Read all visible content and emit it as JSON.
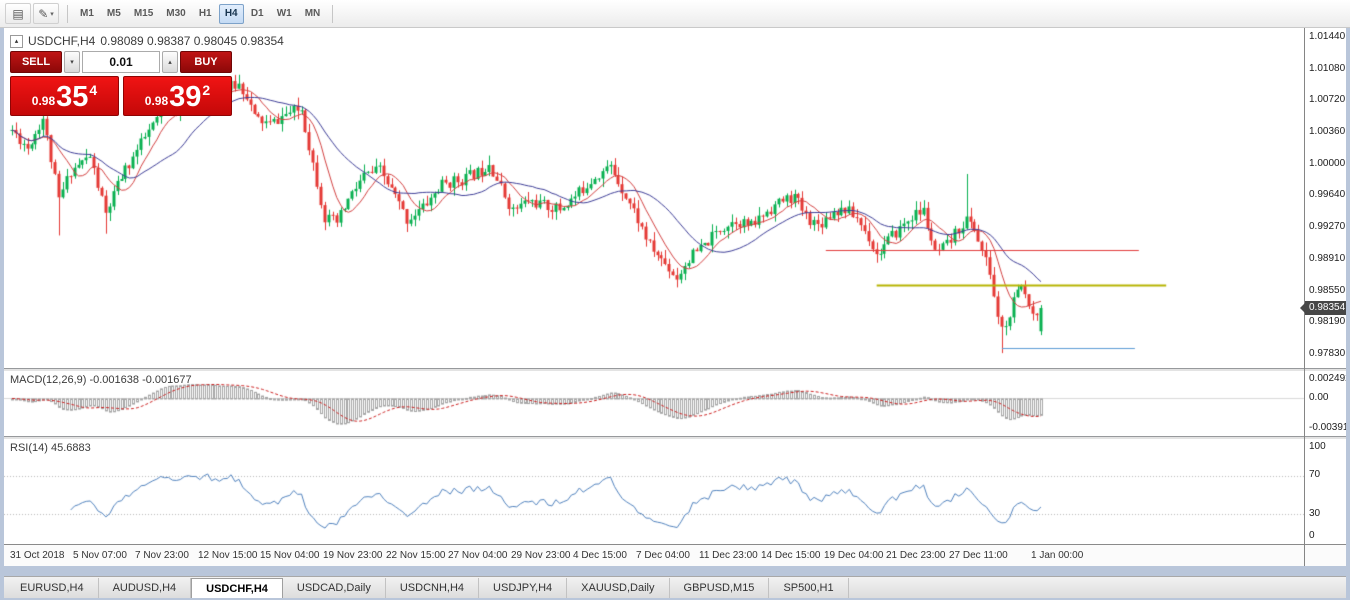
{
  "toolbar": {
    "icon_glyphs": {
      "template": "▤",
      "pencil": "✎",
      "caret": "▾",
      "collapse": "▴",
      "spin_down": "▾",
      "spin_up": "▴"
    },
    "timeframes": [
      {
        "label": "M1",
        "active": false
      },
      {
        "label": "M5",
        "active": false
      },
      {
        "label": "M15",
        "active": false
      },
      {
        "label": "M30",
        "active": false
      },
      {
        "label": "H1",
        "active": false
      },
      {
        "label": "H4",
        "active": true
      },
      {
        "label": "D1",
        "active": false
      },
      {
        "label": "W1",
        "active": false
      },
      {
        "label": "MN",
        "active": false
      }
    ]
  },
  "chart": {
    "title_symbol": "USDCHF,H4",
    "ohlc_display": "0.98089 0.98387 0.98045 0.98354"
  },
  "trade_widget": {
    "sell_label": "SELL",
    "buy_label": "BUY",
    "lot": "0.01",
    "bid_prefix": "0.98",
    "bid_big": "35",
    "bid_sup": "4",
    "bid_full": "0.98354",
    "ask_prefix": "0.98",
    "ask_big": "39",
    "ask_sup": "2",
    "ask_full": "0.98392"
  },
  "price_scale": {
    "current": "0.98354"
  },
  "macd_panel": {
    "label": "MACD(12,26,9) -0.001638 -0.001677",
    "scale": [
      "0.002492",
      "0.00",
      "-0.003913"
    ]
  },
  "rsi_panel": {
    "label": "RSI(14) 45.6883",
    "scale": [
      "100",
      "70",
      "30",
      "0"
    ]
  },
  "tabs": [
    {
      "label": "EURUSD,H4",
      "active": false
    },
    {
      "label": "AUDUSD,H4",
      "active": false
    },
    {
      "label": "USDCHF,H4",
      "active": true
    },
    {
      "label": "USDCAD,Daily",
      "active": false
    },
    {
      "label": "USDCNH,H4",
      "active": false
    },
    {
      "label": "USDJPY,H4",
      "active": false
    },
    {
      "label": "XAUUSD,Daily",
      "active": false
    },
    {
      "label": "GBPUSD,M15",
      "active": false
    },
    {
      "label": "SP500,H1",
      "active": false
    }
  ],
  "chart_data": {
    "type": "candlestick",
    "symbol": "USDCHF",
    "timeframe": "H4",
    "title": "USDCHF,H4",
    "last_candle": {
      "open": 0.98089,
      "high": 0.98387,
      "low": 0.98045,
      "close": 0.98354
    },
    "y_axis": {
      "min": 0.9783,
      "max": 1.0144,
      "tick_labels": [
        "1.01440",
        "1.01080",
        "1.00720",
        "1.00360",
        "1.00000",
        "0.99640",
        "0.99270",
        "0.98910",
        "0.98550",
        "0.98190",
        "0.97830"
      ]
    },
    "x_axis": {
      "labels": [
        "31 Oct 2018",
        "5 Nov 07:00",
        "7 Nov 23:00",
        "12 Nov 15:00",
        "15 Nov 04:00",
        "19 Nov 23:00",
        "22 Nov 15:00",
        "27 Nov 04:00",
        "29 Nov 23:00",
        "4 Dec 15:00",
        "7 Dec 04:00",
        "11 Dec 23:00",
        "14 Dec 15:00",
        "19 Dec 04:00",
        "21 Dec 23:00",
        "27 Dec 11:00",
        "1 Jan 00:00"
      ],
      "label_indices": [
        0,
        16,
        32,
        48,
        64,
        80,
        96,
        112,
        128,
        144,
        160,
        176,
        192,
        208,
        224,
        240,
        261
      ]
    },
    "candle_count": 264,
    "seed": 11,
    "anchors": [
      [
        0,
        1.0038
      ],
      [
        4,
        1.0018
      ],
      [
        8,
        1.0052
      ],
      [
        12,
        0.9958
      ],
      [
        15,
        0.9992
      ],
      [
        20,
        1.0008
      ],
      [
        24,
        0.9942
      ],
      [
        28,
        0.9985
      ],
      [
        33,
        1.0022
      ],
      [
        38,
        1.0058
      ],
      [
        44,
        1.0066
      ],
      [
        50,
        1.0078
      ],
      [
        55,
        1.0086
      ],
      [
        58,
        1.009
      ],
      [
        60,
        1.0078
      ],
      [
        62,
        1.0052
      ],
      [
        66,
        1.0044
      ],
      [
        70,
        1.0056
      ],
      [
        74,
        1.0062
      ],
      [
        77,
        1.0
      ],
      [
        80,
        0.9938
      ],
      [
        83,
        0.9932
      ],
      [
        86,
        0.9958
      ],
      [
        90,
        0.9986
      ],
      [
        94,
        0.9992
      ],
      [
        98,
        0.9962
      ],
      [
        101,
        0.9936
      ],
      [
        105,
        0.995
      ],
      [
        110,
        0.9976
      ],
      [
        115,
        0.9982
      ],
      [
        120,
        0.9992
      ],
      [
        122,
        1.0002
      ],
      [
        125,
        0.9972
      ],
      [
        128,
        0.9946
      ],
      [
        132,
        0.9958
      ],
      [
        136,
        0.9952
      ],
      [
        140,
        0.9948
      ],
      [
        144,
        0.9962
      ],
      [
        149,
        0.9986
      ],
      [
        153,
        0.9996
      ],
      [
        156,
        0.9972
      ],
      [
        159,
        0.9946
      ],
      [
        163,
        0.9906
      ],
      [
        167,
        0.9886
      ],
      [
        170,
        0.987
      ],
      [
        173,
        0.9892
      ],
      [
        177,
        0.9906
      ],
      [
        181,
        0.9926
      ],
      [
        185,
        0.9936
      ],
      [
        189,
        0.9928
      ],
      [
        193,
        0.9946
      ],
      [
        197,
        0.9958
      ],
      [
        200,
        0.9962
      ],
      [
        203,
        0.994
      ],
      [
        206,
        0.993
      ],
      [
        210,
        0.9946
      ],
      [
        213,
        0.9948
      ],
      [
        216,
        0.9938
      ],
      [
        219,
        0.9916
      ],
      [
        221,
        0.9896
      ],
      [
        224,
        0.9912
      ],
      [
        227,
        0.9926
      ],
      [
        230,
        0.994
      ],
      [
        233,
        0.9946
      ],
      [
        236,
        0.9896
      ],
      [
        239,
        0.9906
      ],
      [
        242,
        0.9926
      ],
      [
        244,
        0.9936
      ],
      [
        246,
        0.9926
      ],
      [
        248,
        0.99
      ],
      [
        250,
        0.9876
      ],
      [
        252,
        0.9822
      ],
      [
        254,
        0.9812
      ],
      [
        256,
        0.9842
      ],
      [
        258,
        0.986
      ],
      [
        260,
        0.9842
      ],
      [
        262,
        0.9826
      ],
      [
        263,
        0.98354
      ]
    ],
    "wick_overrides": {
      "12": {
        "low": 0.9918
      },
      "24": {
        "low": 0.992
      },
      "58": {
        "high": 1.0101
      },
      "80": {
        "low": 0.9924
      },
      "122": {
        "high": 1.0009
      },
      "244": {
        "high": 0.9988
      },
      "253": {
        "low": 0.9784
      },
      "263": {
        "high": 0.98387,
        "low": 0.98045
      }
    },
    "colors": {
      "up": "#09b050",
      "down": "#e53935",
      "background": "#ffffff"
    },
    "moving_averages": [
      {
        "period": 8,
        "color": "#d23f3f"
      },
      {
        "period": 21,
        "color": "#3c3c96"
      }
    ],
    "levels": [
      {
        "name": "resistance-line",
        "color": "#e23b3b",
        "width": 1,
        "price": 0.9901,
        "from_index": 208,
        "to_index": 288
      },
      {
        "name": "mid-line",
        "color": "#b6b400",
        "width": 2,
        "price": 0.9862,
        "from_index": 221,
        "to_index": 295
      },
      {
        "name": "support-line",
        "color": "#5b9bd5",
        "width": 1,
        "price": 0.979,
        "from_index": 253,
        "to_index": 287
      }
    ],
    "indicators": {
      "macd": {
        "fast": 12,
        "slow": 26,
        "signal": 9,
        "last_main": -0.001638,
        "last_signal": -0.001677,
        "scale_max": 0.002492,
        "scale_min": -0.003913,
        "histogram_color": "#a6a6a6",
        "signal_color": "#cc2222",
        "zero_line_color": "#d8d8d8"
      },
      "rsi": {
        "period": 14,
        "last": 45.6883,
        "color": "#4f81bd",
        "levels": [
          70,
          30
        ],
        "level_line_color": "#b8b8b8"
      }
    }
  }
}
